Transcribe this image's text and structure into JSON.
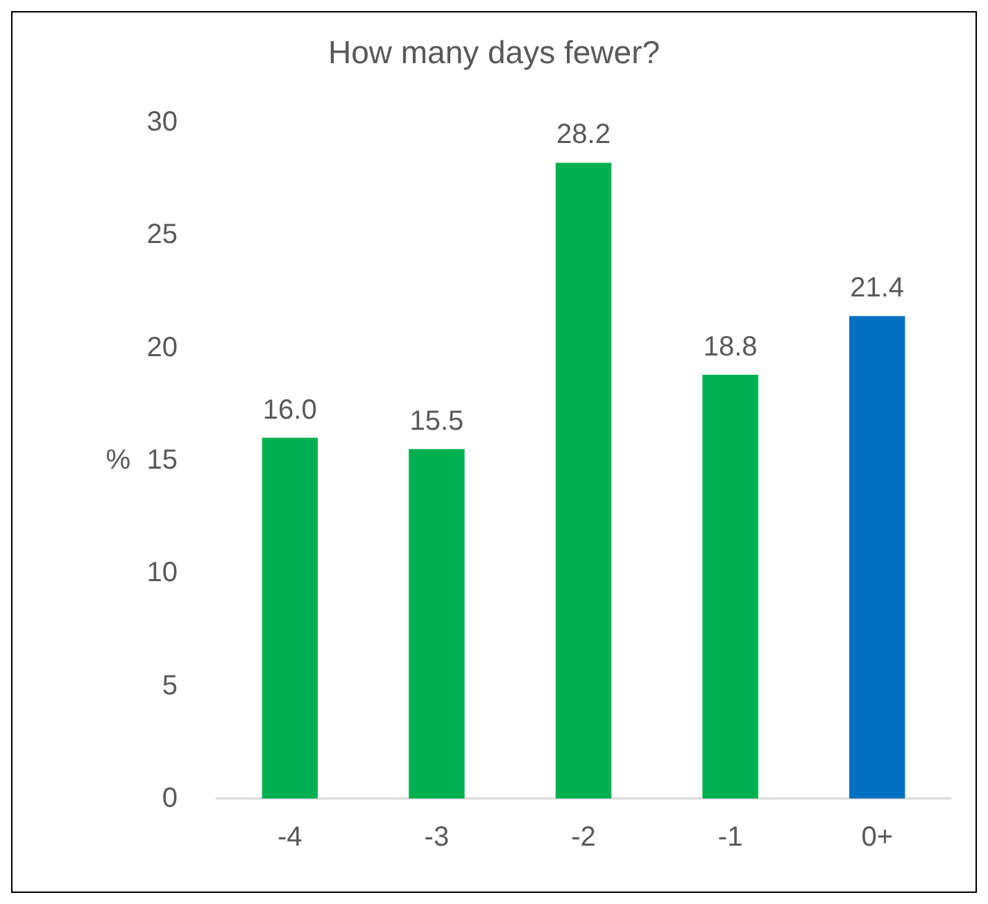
{
  "chart_data": {
    "type": "bar",
    "title": "How many days fewer?",
    "ylabel": "%",
    "categories": [
      "-4",
      "-3",
      "-2",
      "-1",
      "0+"
    ],
    "values": [
      16.0,
      15.5,
      28.2,
      18.8,
      21.4
    ],
    "colors": [
      "#00b050",
      "#00b050",
      "#00b050",
      "#00b050",
      "#0070c0"
    ],
    "value_labels": [
      "16.0",
      "15.5",
      "28.2",
      "18.8",
      "21.4"
    ],
    "ylim": [
      0,
      30
    ],
    "yticks": [
      0,
      5,
      10,
      15,
      20,
      25,
      30
    ],
    "grid": false
  }
}
